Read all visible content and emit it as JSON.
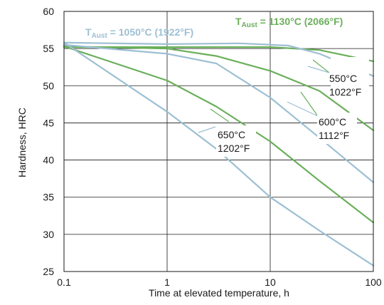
{
  "chart_data": {
    "type": "line",
    "xlabel": "Time at elevated temperature, h",
    "ylabel": "Hardness, HRC",
    "x_scale": "log",
    "xlim": [
      0.1,
      100
    ],
    "ylim": [
      25,
      60
    ],
    "x_ticks": [
      "0.1",
      "1",
      "10",
      "100"
    ],
    "y_ticks": [
      "25",
      "30",
      "35",
      "40",
      "45",
      "50",
      "55",
      "60"
    ],
    "grid": true,
    "colors": {
      "blue": "#9dbfd3",
      "green": "#6aaf5a"
    },
    "legend": [
      {
        "main": "T",
        "sub": "Aust",
        "rest": " = 1050°C (1922°F)",
        "color": "#9dbfd3"
      },
      {
        "main": "T",
        "sub": "Aust",
        "rest": " = 1130°C (2066°F)",
        "color": "#6aaf5a"
      }
    ],
    "series": [
      {
        "group": "1050°C",
        "temp": "550°C",
        "color": "#9dbfd3",
        "points": [
          [
            0.1,
            55.8
          ],
          [
            1,
            55.6
          ],
          [
            5,
            55.7
          ],
          [
            15,
            55.4
          ],
          [
            30,
            54.3
          ],
          [
            100,
            51.3
          ]
        ]
      },
      {
        "group": "1050°C",
        "temp": "600°C",
        "color": "#9dbfd3",
        "points": [
          [
            0.1,
            55.5
          ],
          [
            1,
            54.3
          ],
          [
            3,
            53.0
          ],
          [
            10,
            48.4
          ],
          [
            30,
            43.0
          ],
          [
            100,
            37.0
          ]
        ]
      },
      {
        "group": "1050°C",
        "temp": "650°C",
        "color": "#9dbfd3",
        "points": [
          [
            0.1,
            55.8
          ],
          [
            1,
            46.5
          ],
          [
            3,
            41.5
          ],
          [
            10,
            35.0
          ],
          [
            30,
            30.5
          ],
          [
            100,
            25.8
          ]
        ]
      },
      {
        "group": "1130°C",
        "temp": "550°C",
        "color": "#6aaf5a",
        "points": [
          [
            0.1,
            55.2
          ],
          [
            1,
            55.2
          ],
          [
            10,
            55.2
          ],
          [
            30,
            54.8
          ],
          [
            100,
            53.3
          ]
        ]
      },
      {
        "group": "1130°C",
        "temp": "600°C",
        "color": "#6aaf5a",
        "points": [
          [
            0.1,
            55.3
          ],
          [
            1,
            55.0
          ],
          [
            3,
            54.0
          ],
          [
            10,
            52.0
          ],
          [
            30,
            49.3
          ],
          [
            100,
            44.0
          ]
        ]
      },
      {
        "group": "1130°C",
        "temp": "650°C",
        "color": "#6aaf5a",
        "points": [
          [
            0.1,
            55.3
          ],
          [
            1,
            50.7
          ],
          [
            3,
            47.2
          ],
          [
            10,
            42.5
          ],
          [
            30,
            37.2
          ],
          [
            100,
            31.6
          ]
        ]
      }
    ],
    "annotations": [
      {
        "line1": "550°C",
        "line2": "1022°F"
      },
      {
        "line1": "600°C",
        "line2": "1112°F"
      },
      {
        "line1": "650°C",
        "line2": "1202°F"
      }
    ]
  }
}
